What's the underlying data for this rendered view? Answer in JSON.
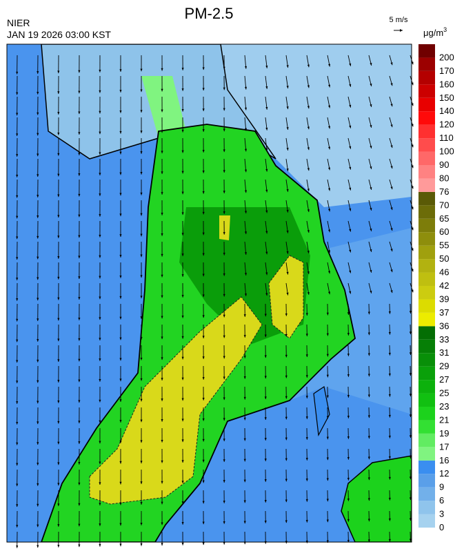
{
  "header": {
    "agency": "NIER",
    "valid_time": "JAN 19 2026 03:00 KST",
    "title": "PM-2.5"
  },
  "wind_scale": {
    "label": "5 m/s"
  },
  "colorbar": {
    "unit": "μg/m",
    "unit_exponent": "3",
    "levels": [
      {
        "value": 0,
        "color": "#a6d2ef"
      },
      {
        "value": 3,
        "color": "#8fc4ec"
      },
      {
        "value": 6,
        "color": "#72b0ea"
      },
      {
        "value": 9,
        "color": "#5a9fe9"
      },
      {
        "value": 12,
        "color": "#3a8ef0"
      },
      {
        "value": 16,
        "color": "#80f480"
      },
      {
        "value": 17,
        "color": "#62ec62"
      },
      {
        "value": 19,
        "color": "#33e033"
      },
      {
        "value": 21,
        "color": "#1cd21c"
      },
      {
        "value": 23,
        "color": "#11c011"
      },
      {
        "value": 25,
        "color": "#0cb10c"
      },
      {
        "value": 27,
        "color": "#0aa00a"
      },
      {
        "value": 29,
        "color": "#088f08"
      },
      {
        "value": 31,
        "color": "#067f06"
      },
      {
        "value": 33,
        "color": "#046e04"
      },
      {
        "value": 36,
        "color": "#ecec00"
      },
      {
        "value": 37,
        "color": "#dcdc00"
      },
      {
        "value": 39,
        "color": "#cccc10"
      },
      {
        "value": 42,
        "color": "#bfbf10"
      },
      {
        "value": 46,
        "color": "#b2b210"
      },
      {
        "value": 50,
        "color": "#a0a00e"
      },
      {
        "value": 55,
        "color": "#8e8e0c"
      },
      {
        "value": 60,
        "color": "#7d7d0a"
      },
      {
        "value": 65,
        "color": "#6c6c08"
      },
      {
        "value": 70,
        "color": "#5a5a06"
      },
      {
        "value": 76,
        "color": "#ff9a9a"
      },
      {
        "value": 80,
        "color": "#ff8282"
      },
      {
        "value": 90,
        "color": "#ff6868"
      },
      {
        "value": 100,
        "color": "#ff4c4c"
      },
      {
        "value": 110,
        "color": "#ff3030"
      },
      {
        "value": 120,
        "color": "#ff0a0a"
      },
      {
        "value": 140,
        "color": "#e80000"
      },
      {
        "value": 150,
        "color": "#cc0000"
      },
      {
        "value": 160,
        "color": "#b40000"
      },
      {
        "value": 170,
        "color": "#9c0000"
      },
      {
        "value": 200,
        "color": "#700000"
      }
    ]
  }
}
